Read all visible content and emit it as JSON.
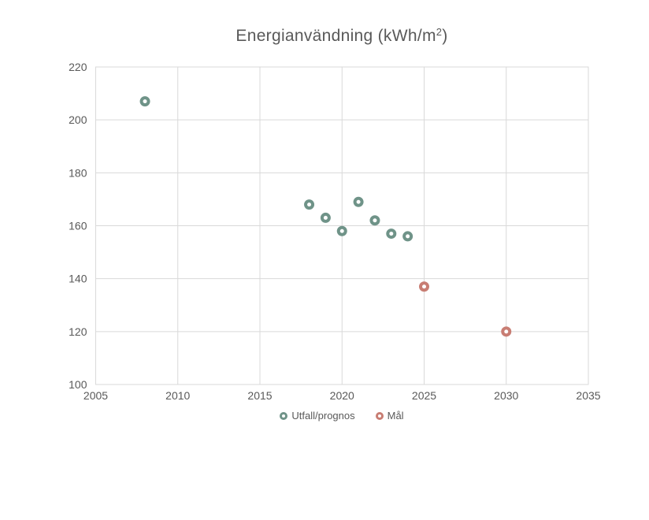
{
  "chart_title": {
    "prefix": "Energianvändning (kWh/m",
    "sup": "2",
    "suffix": ")"
  },
  "chart_data": {
    "type": "scatter",
    "title": "Energianvändning (kWh/m²)",
    "xlabel": "",
    "ylabel": "",
    "xlim": [
      2005,
      2035
    ],
    "ylim": [
      100,
      220
    ],
    "x_ticks": [
      2005,
      2010,
      2015,
      2020,
      2025,
      2030,
      2035
    ],
    "y_ticks": [
      100,
      120,
      140,
      160,
      180,
      200,
      220
    ],
    "grid": true,
    "legend_position": "bottom",
    "series": [
      {
        "name": "Utfall/prognos",
        "color": "#6F9388",
        "points": [
          [
            2008,
            207
          ],
          [
            2018,
            168
          ],
          [
            2019,
            163
          ],
          [
            2020,
            158
          ],
          [
            2021,
            169
          ],
          [
            2022,
            162
          ],
          [
            2023,
            157
          ],
          [
            2024,
            156
          ]
        ]
      },
      {
        "name": "Mål",
        "color": "#C87D73",
        "points": [
          [
            2025,
            137
          ],
          [
            2030,
            120
          ]
        ]
      }
    ]
  },
  "colors": {
    "grid": "#D9D9D9",
    "text": "#595959",
    "background": "#FFFFFF"
  }
}
